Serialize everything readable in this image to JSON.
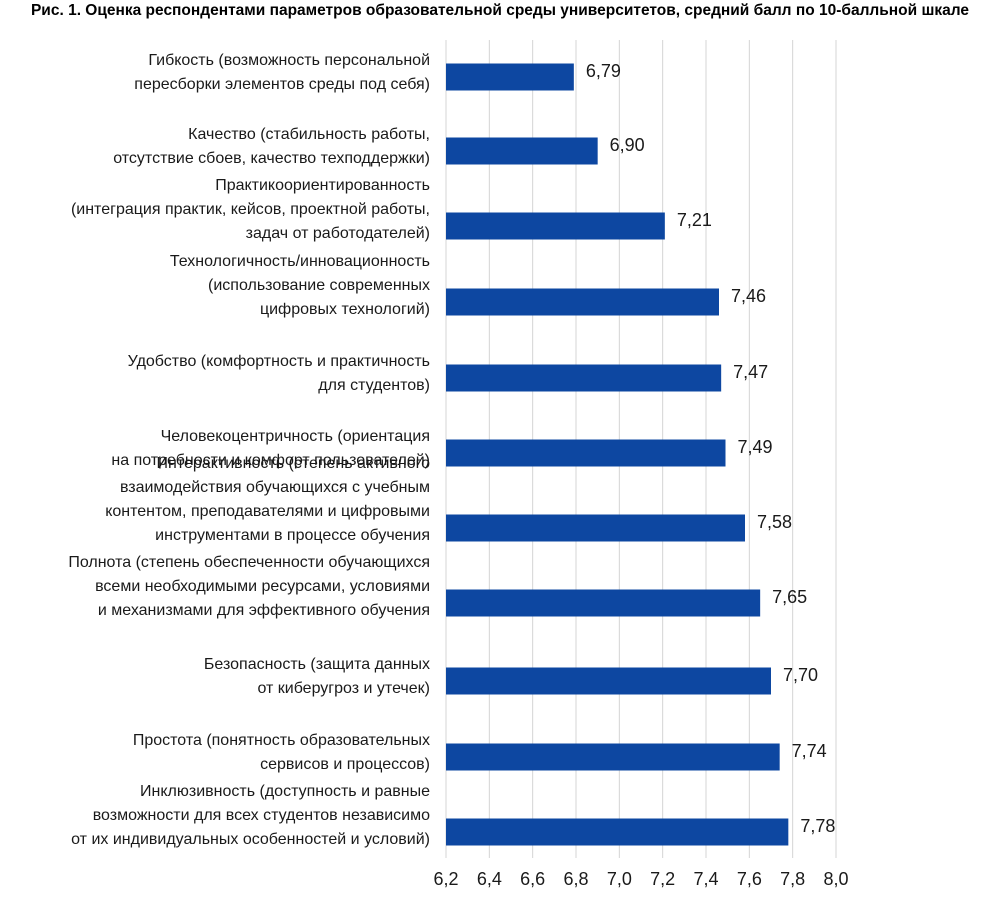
{
  "title": "Рис. 1. Оценка респондентами параметров образовательной среды университетов, средний балл по 10-балльной шкале",
  "chart_data": {
    "type": "bar",
    "orientation": "horizontal",
    "title": "Рис. 1. Оценка респондентами параметров образовательной среды университетов, средний балл по 10-балльной шкале",
    "bar_color": "#0d47a1",
    "grid_color": "#d4d4d4",
    "xlim": [
      6.2,
      8.0
    ],
    "ticks": [
      "6,2",
      "6,4",
      "6,6",
      "6,8",
      "7,0",
      "7,2",
      "7,4",
      "7,6",
      "7,8",
      "8,0"
    ],
    "grid": "vertical",
    "categories": [
      [
        "Гибкость (возможность персональной",
        "пересборки элементов среды под себя)"
      ],
      [
        "Качество (стабильность работы,",
        "отсутствие сбоев, качество техподдержки)"
      ],
      [
        "Практикоориентированность",
        "(интеграция практик, кейсов, проектной работы,",
        "задач от работодателей)"
      ],
      [
        "Технологичность/инновационность",
        "(использование современных",
        "цифровых технологий)"
      ],
      [
        "Удобство (комфортность и практичность",
        "для студентов)"
      ],
      [
        "Человекоцентричность (ориентация",
        "на потребности и комфорт пользователей)"
      ],
      [
        "Интерактивность (степень активного",
        "взаимодействия обучающихся с учебным",
        "контентом, преподавателями и цифровыми",
        "инструментами в процессе обучения"
      ],
      [
        "Полнота (степень обеспеченности обучающихся",
        "всеми необходимыми ресурсами, условиями",
        "и механизмами для эффективного обучения"
      ],
      [
        "Безопасность (защита данных",
        "от киберугроз и утечек)"
      ],
      [
        "Простота (понятность образовательных",
        "сервисов и процессов)"
      ],
      [
        "Инклюзивность (доступность и равные",
        "возможности для всех студентов независимо",
        "от их индивидуальных особенностей и условий)"
      ]
    ],
    "values": [
      6.79,
      6.9,
      7.21,
      7.46,
      7.47,
      7.49,
      7.58,
      7.65,
      7.7,
      7.74,
      7.78
    ],
    "value_labels": [
      "6,79",
      "6,90",
      "7,21",
      "7,46",
      "7,47",
      "7,49",
      "7,58",
      "7,65",
      "7,70",
      "7,74",
      "7,78"
    ]
  }
}
